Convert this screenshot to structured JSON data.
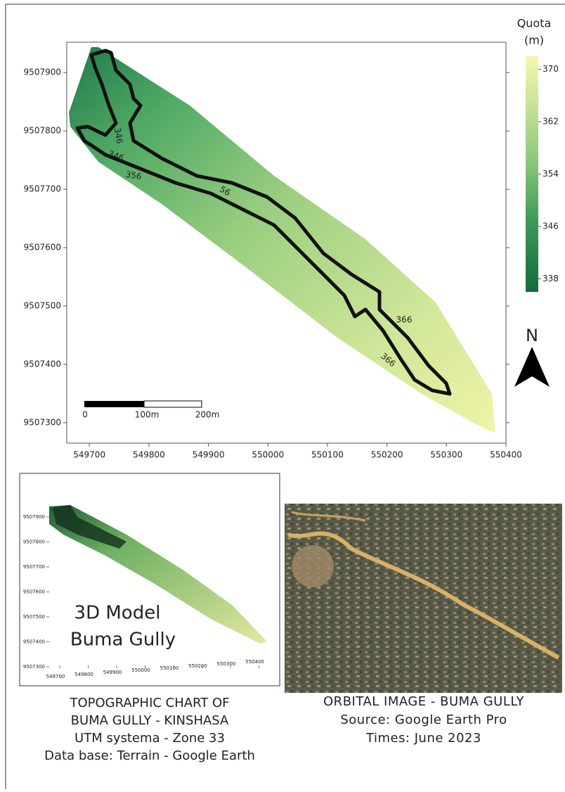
{
  "map": {
    "xlim": [
      549662,
      550400
    ],
    "ylim": [
      9507265,
      9507952
    ],
    "xticks": [
      549700,
      549800,
      549900,
      550000,
      550100,
      550200,
      550300,
      550400
    ],
    "yticks": [
      9507300,
      9507400,
      9507500,
      9507600,
      9507700,
      9507800,
      9507900
    ],
    "contour_labels": [
      "346",
      "346",
      "356",
      "56",
      "366",
      "366"
    ],
    "scale_bar_labels": [
      "0",
      "100m",
      "200m"
    ],
    "north": "N"
  },
  "legend": {
    "title_lines": [
      "Quota",
      "(m)"
    ],
    "lim": [
      336,
      372
    ],
    "ticks": [
      338,
      346,
      354,
      362,
      370
    ]
  },
  "inset_3d": {
    "title_lines": [
      "3D Model",
      "Buma Gully"
    ],
    "xticks": [
      549700,
      549800,
      549900,
      550000,
      550100,
      550200,
      550300,
      550400
    ],
    "yticks": [
      9507300,
      9507400,
      9507500,
      9507600,
      9507700,
      9507800,
      9507900
    ]
  },
  "caption_left": [
    "TOPOGRAPHIC CHART OF",
    "BUMA GULLY - KINSHASA",
    "UTM systema - Zone 33",
    "Data base: Terrain - Google Earth"
  ],
  "caption_right": [
    "ORBITAL IMAGE - BUMA GULLY",
    "Source: Google Earth Pro",
    "Times: June 2023"
  ]
}
